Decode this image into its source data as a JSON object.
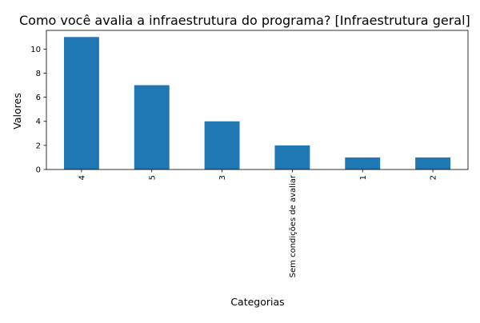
{
  "chart_data": {
    "type": "bar",
    "title": "Como você avalia a  infraestrutura do programa?  [Infraestrutura geral]",
    "xlabel": "Categorias",
    "ylabel": "Valores",
    "categories": [
      "4",
      "5",
      "3",
      "Sem condições de avaliar",
      "1",
      "2"
    ],
    "values": [
      11,
      7,
      4,
      2,
      1,
      1
    ],
    "ylim": [
      0,
      11.55
    ],
    "yticks": [
      0,
      2,
      4,
      6,
      8,
      10
    ],
    "bar_color": "#1f77b4",
    "grid": false,
    "legend": "none"
  }
}
